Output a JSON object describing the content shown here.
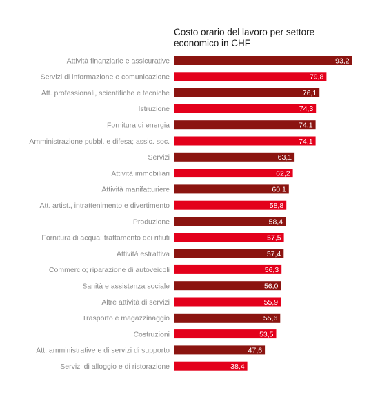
{
  "chart_data": {
    "type": "bar",
    "orientation": "horizontal",
    "title": "Costo orario del lavoro per settore economico in CHF",
    "title_lines": [
      "Costo orario del lavoro per settore",
      "economico in CHF"
    ],
    "xlim": [
      0,
      100
    ],
    "grid": false,
    "legend": "none",
    "colors": {
      "dark": "#8b1410",
      "bright": "#e3001b",
      "label": "#8a8a8a"
    },
    "categories": [
      "Attività finanziarie e assicurative",
      "Servizi di informazione e comunicazione",
      "Att. professionali, scientifiche e tecniche",
      "Istruzione",
      "Fornitura di energia",
      "Amministrazione pubbl. e difesa; assic. soc.",
      "Servizi",
      "Attività immobiliari",
      "Attività manifatturiere",
      "Att. artist., intrattenimento e divertimento",
      "Produzione",
      "Fornitura di acqua; trattamento dei rifiuti",
      "Attività estrattiva",
      "Commercio; riparazione di autoveicoli",
      "Sanità e assistenza sociale",
      "Altre attività di servizi",
      "Trasporto e magazzinaggio",
      "Costruzioni",
      "Att. amministrative e di servizi di supporto",
      "Servizi di alloggio e di ristorazione"
    ],
    "values": [
      93.2,
      79.8,
      76.1,
      74.3,
      74.1,
      74.1,
      63.1,
      62.2,
      60.1,
      58.8,
      58.4,
      57.5,
      57.4,
      56.3,
      56.0,
      55.9,
      55.6,
      53.5,
      47.6,
      38.4
    ],
    "value_labels": [
      "93,2",
      "79,8",
      "76,1",
      "74,3",
      "74,1",
      "74,1",
      "63,1",
      "62,2",
      "60,1",
      "58,8",
      "58,4",
      "57,5",
      "57,4",
      "56,3",
      "56,0",
      "55,9",
      "55,6",
      "53,5",
      "47,6",
      "38,4"
    ],
    "bar_colors": [
      "dark",
      "bright",
      "dark",
      "bright",
      "dark",
      "bright",
      "dark",
      "bright",
      "dark",
      "bright",
      "dark",
      "bright",
      "dark",
      "bright",
      "dark",
      "bright",
      "dark",
      "bright",
      "dark",
      "bright"
    ]
  }
}
